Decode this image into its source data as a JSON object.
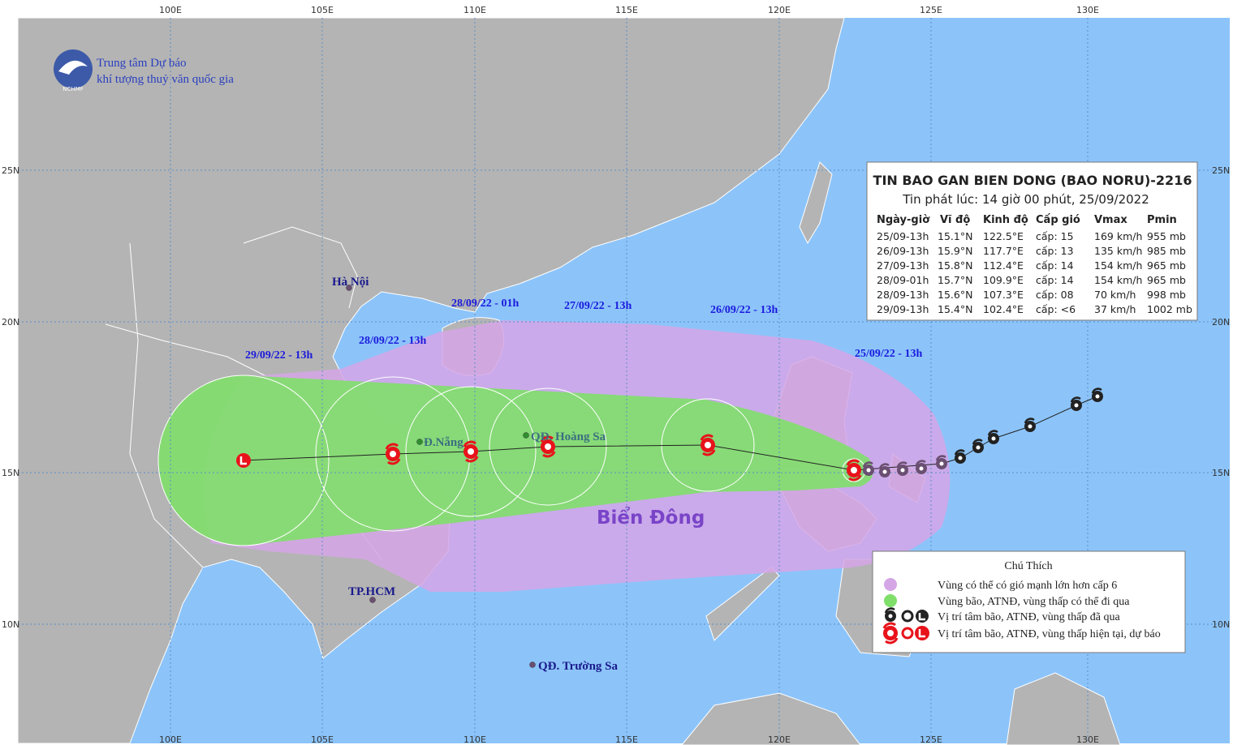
{
  "logo": {
    "line1": "Trung tâm Dự báo",
    "line2": "khí tượng thuỷ văn quốc gia",
    "abbr": "NCHMF"
  },
  "grid": {
    "lon_labels": [
      "100E",
      "105E",
      "110E",
      "115E",
      "120E",
      "125E",
      "130E"
    ],
    "lat_labels": [
      "25N",
      "20N",
      "15N",
      "10N"
    ]
  },
  "info_box": {
    "title": "TIN BAO GAN BIEN DONG (BAO NORU)-2216",
    "subtitle": "Tin phát lúc: 14 giờ 00 phút, 25/09/2022",
    "header": [
      "Ngày-giờ",
      "Vĩ độ",
      "Kinh độ",
      "Cấp gió",
      "Vmax",
      "Pmin"
    ],
    "rows": [
      [
        "25/09-13h",
        "15.1°N",
        "122.5°E",
        "cấp: 15",
        "169 km/h",
        "955 mb"
      ],
      [
        "26/09-13h",
        "15.9°N",
        "117.7°E",
        "cấp: 13",
        "135 km/h",
        "985 mb"
      ],
      [
        "27/09-13h",
        "15.8°N",
        "112.4°E",
        "cấp: 14",
        "154 km/h",
        "965 mb"
      ],
      [
        "28/09-01h",
        "15.7°N",
        "109.9°E",
        "cấp: 14",
        "154 km/h",
        "965 mb"
      ],
      [
        "28/09-13h",
        "15.6°N",
        "107.3°E",
        "cấp: 08",
        "70 km/h",
        "998 mb"
      ],
      [
        "29/09-13h",
        "15.4°N",
        "102.4°E",
        "cấp: <6",
        "37 km/h",
        "1002 mb"
      ]
    ]
  },
  "track_labels": [
    "28/09/22 - 01h",
    "27/09/22 - 13h",
    "26/09/22 - 13h",
    "25/09/22 - 13h",
    "28/09/22 - 13h",
    "29/09/22 - 13h"
  ],
  "places": [
    "Hà Nội",
    "Đ.Nẵng",
    "QĐ. Hoàng Sa",
    "TP.HCM",
    "QĐ. Trường Sa"
  ],
  "sea_label": "Biển Đông",
  "legend": {
    "title": "Chú Thích",
    "items": [
      "Vùng có thể có gió mạnh lớn hơn cấp 6",
      "Vùng bão, ATNĐ, vùng thấp có thể đi qua",
      "Vị trí tâm bão, ATNĐ, vùng thấp đã qua",
      "Vị trí tâm bão, ATNĐ, vùng thấp hiện tại, dự báo"
    ]
  }
}
